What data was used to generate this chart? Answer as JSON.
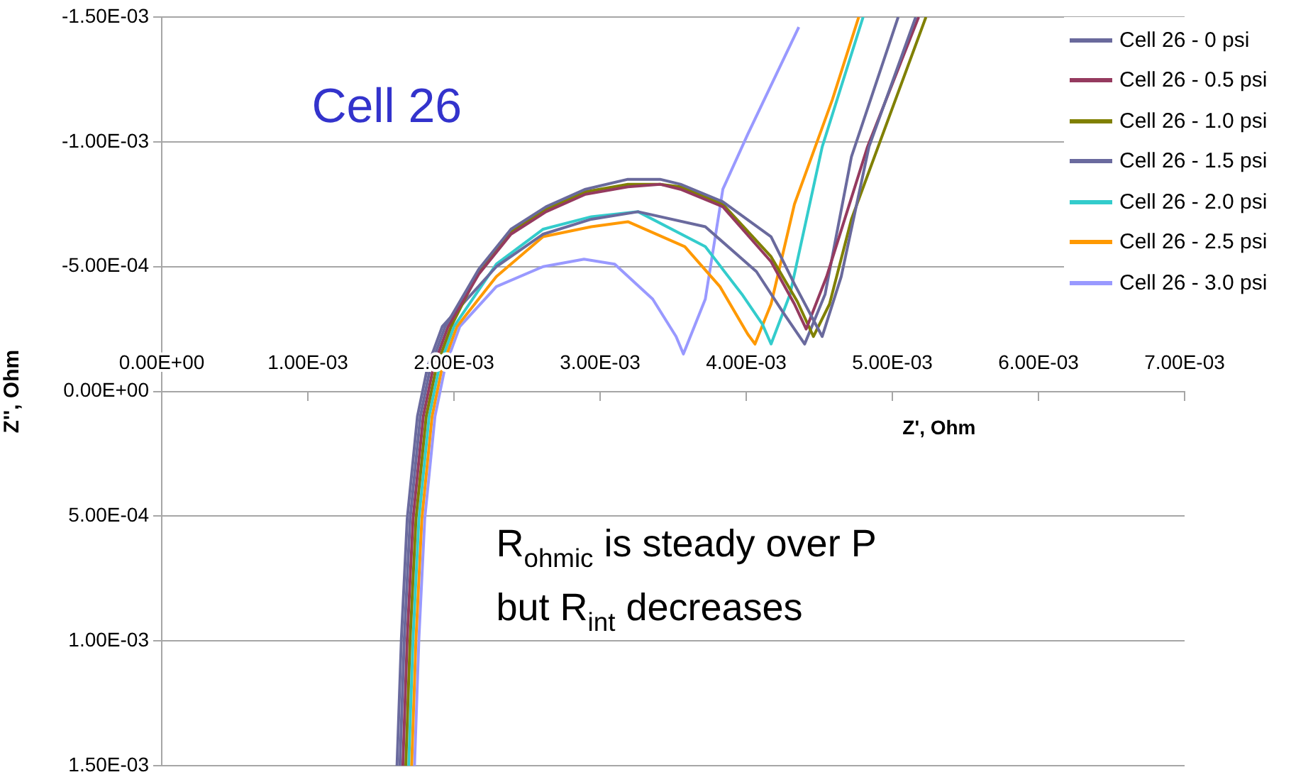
{
  "chart_data": {
    "type": "line",
    "title": "Cell 26",
    "xlabel": "Z', Ohm",
    "ylabel": "Z'', Ohm",
    "annotations": [
      "R$_{ohmic}$ is steady over P but R$_{int}$ decreases"
    ],
    "xlim": [
      0,
      0.007
    ],
    "xticks": [
      {
        "value": 0,
        "label": "0.00E+00"
      },
      {
        "value": 0.001,
        "label": "1.00E-03"
      },
      {
        "value": 0.002,
        "label": "2.00E-03"
      },
      {
        "value": 0.003,
        "label": "3.00E-03"
      },
      {
        "value": 0.004,
        "label": "4.00E-03"
      },
      {
        "value": 0.005,
        "label": "5.00E-03"
      },
      {
        "value": 0.006,
        "label": "6.00E-03"
      },
      {
        "value": 0.007,
        "label": "7.00E-03"
      }
    ],
    "ylim": [
      0.0015,
      -0.0015
    ],
    "yticks": [
      {
        "value": -0.0015,
        "label": "-1.50E-03"
      },
      {
        "value": -0.001,
        "label": "-1.00E-03"
      },
      {
        "value": -0.0005,
        "label": "-5.00E-04"
      },
      {
        "value": 0,
        "label": "0.00E+00"
      },
      {
        "value": 0.0005,
        "label": "5.00E-04"
      },
      {
        "value": 0.001,
        "label": "1.00E-03"
      },
      {
        "value": 0.0015,
        "label": "1.50E-03"
      }
    ],
    "grid": "y",
    "legend": "top right",
    "series": [
      {
        "name": "Cell 26 - 0 psi",
        "color": "#69699c",
        "x": [
          0.00163,
          0.00166,
          0.0017,
          0.00177,
          0.00184,
          0.00194,
          0.00217,
          0.00239,
          0.00263,
          0.0029,
          0.00319,
          0.00341,
          0.00355,
          0.00384,
          0.00417,
          0.00433,
          0.00452,
          0.00465,
          0.00484,
          0.00516
        ],
        "values": [
          0.0015,
          0.00099,
          0.00051,
          0.0001,
          -0.0001,
          -0.00026,
          -0.00049,
          -0.00065,
          -0.00074,
          -0.00081,
          -0.00085,
          -0.00085,
          -0.00083,
          -0.00076,
          -0.00062,
          -0.00043,
          -0.00022,
          -0.00046,
          -0.00098,
          -0.0015
        ]
      },
      {
        "name": "Cell 26 - 0.5 psi",
        "color": "#953a5f",
        "x": [
          0.00165,
          0.00168,
          0.00172,
          0.00179,
          0.00186,
          0.00196,
          0.00217,
          0.00239,
          0.00263,
          0.0029,
          0.00319,
          0.00341,
          0.00355,
          0.00384,
          0.00417,
          0.00433,
          0.00441,
          0.00455,
          0.00483,
          0.00518
        ],
        "values": [
          0.0015,
          0.00099,
          0.00051,
          0.0001,
          -0.0001,
          -0.00026,
          -0.00047,
          -0.00063,
          -0.00072,
          -0.00079,
          -0.00082,
          -0.00083,
          -0.00081,
          -0.00074,
          -0.00052,
          -0.00035,
          -0.00025,
          -0.00046,
          -0.00098,
          -0.0015
        ]
      },
      {
        "name": "Cell 26 - 1.0 psi",
        "color": "#808000",
        "x": [
          0.00167,
          0.0017,
          0.00174,
          0.00181,
          0.00188,
          0.00198,
          0.00217,
          0.00239,
          0.00263,
          0.0029,
          0.00319,
          0.00341,
          0.00355,
          0.00384,
          0.00417,
          0.00435,
          0.00446,
          0.00457,
          0.00472,
          0.00523
        ],
        "values": [
          0.0015,
          0.00099,
          0.00051,
          0.0001,
          -0.0001,
          -0.00026,
          -0.00048,
          -0.00064,
          -0.00073,
          -0.0008,
          -0.00083,
          -0.00083,
          -0.00082,
          -0.00075,
          -0.00054,
          -0.00036,
          -0.00022,
          -0.00035,
          -0.00069,
          -0.0015
        ]
      },
      {
        "name": "Cell 26 - 1.5 psi",
        "color": "#6a6a9e",
        "x": [
          0.00161,
          0.00164,
          0.00168,
          0.00175,
          0.00182,
          0.00192,
          0.00229,
          0.00261,
          0.00294,
          0.00326,
          0.00372,
          0.00407,
          0.00426,
          0.0044,
          0.00454,
          0.00472,
          0.00504
        ],
        "values": [
          0.0015,
          0.00099,
          0.00051,
          0.0001,
          -0.0001,
          -0.00026,
          -0.0005,
          -0.00063,
          -0.00069,
          -0.00072,
          -0.00066,
          -0.00048,
          -0.00031,
          -0.00019,
          -0.00039,
          -0.00094,
          -0.0015
        ]
      },
      {
        "name": "Cell 26 - 2.0 psi",
        "color": "#33cccc",
        "x": [
          0.00169,
          0.00172,
          0.00176,
          0.00183,
          0.0019,
          0.002,
          0.00229,
          0.00261,
          0.00294,
          0.00326,
          0.00372,
          0.00397,
          0.00411,
          0.00417,
          0.0043,
          0.00452,
          0.0048
        ],
        "values": [
          0.0015,
          0.00099,
          0.00051,
          0.0001,
          -0.0001,
          -0.00026,
          -0.00051,
          -0.00065,
          -0.0007,
          -0.00072,
          -0.00058,
          -0.00039,
          -0.00027,
          -0.00019,
          -0.00039,
          -0.00098,
          -0.0015
        ]
      },
      {
        "name": "Cell 26 - 2.5 psi",
        "color": "#ff9900",
        "x": [
          0.00171,
          0.00174,
          0.00178,
          0.00185,
          0.00192,
          0.00202,
          0.00229,
          0.00261,
          0.00294,
          0.00319,
          0.00358,
          0.00382,
          0.00401,
          0.00406,
          0.00417,
          0.00433,
          0.00459,
          0.00477
        ],
        "values": [
          0.0015,
          0.00099,
          0.00051,
          0.0001,
          -0.0001,
          -0.00026,
          -0.00046,
          -0.00062,
          -0.00066,
          -0.00068,
          -0.00058,
          -0.00042,
          -0.00023,
          -0.00019,
          -0.00035,
          -0.00075,
          -0.00117,
          -0.0015
        ]
      },
      {
        "name": "Cell 26 - 3.0 psi",
        "color": "#9999ff",
        "x": [
          0.00173,
          0.00176,
          0.0018,
          0.00187,
          0.00194,
          0.00204,
          0.00229,
          0.00261,
          0.00289,
          0.0031,
          0.00336,
          0.00352,
          0.00357,
          0.00372,
          0.00384,
          0.00401,
          0.00436
        ],
        "values": [
          0.0015,
          0.00099,
          0.00051,
          0.0001,
          -0.0001,
          -0.00026,
          -0.00042,
          -0.0005,
          -0.00053,
          -0.00051,
          -0.00037,
          -0.00022,
          -0.00015,
          -0.00037,
          -0.00081,
          -0.00103,
          -0.00146
        ]
      }
    ]
  }
}
